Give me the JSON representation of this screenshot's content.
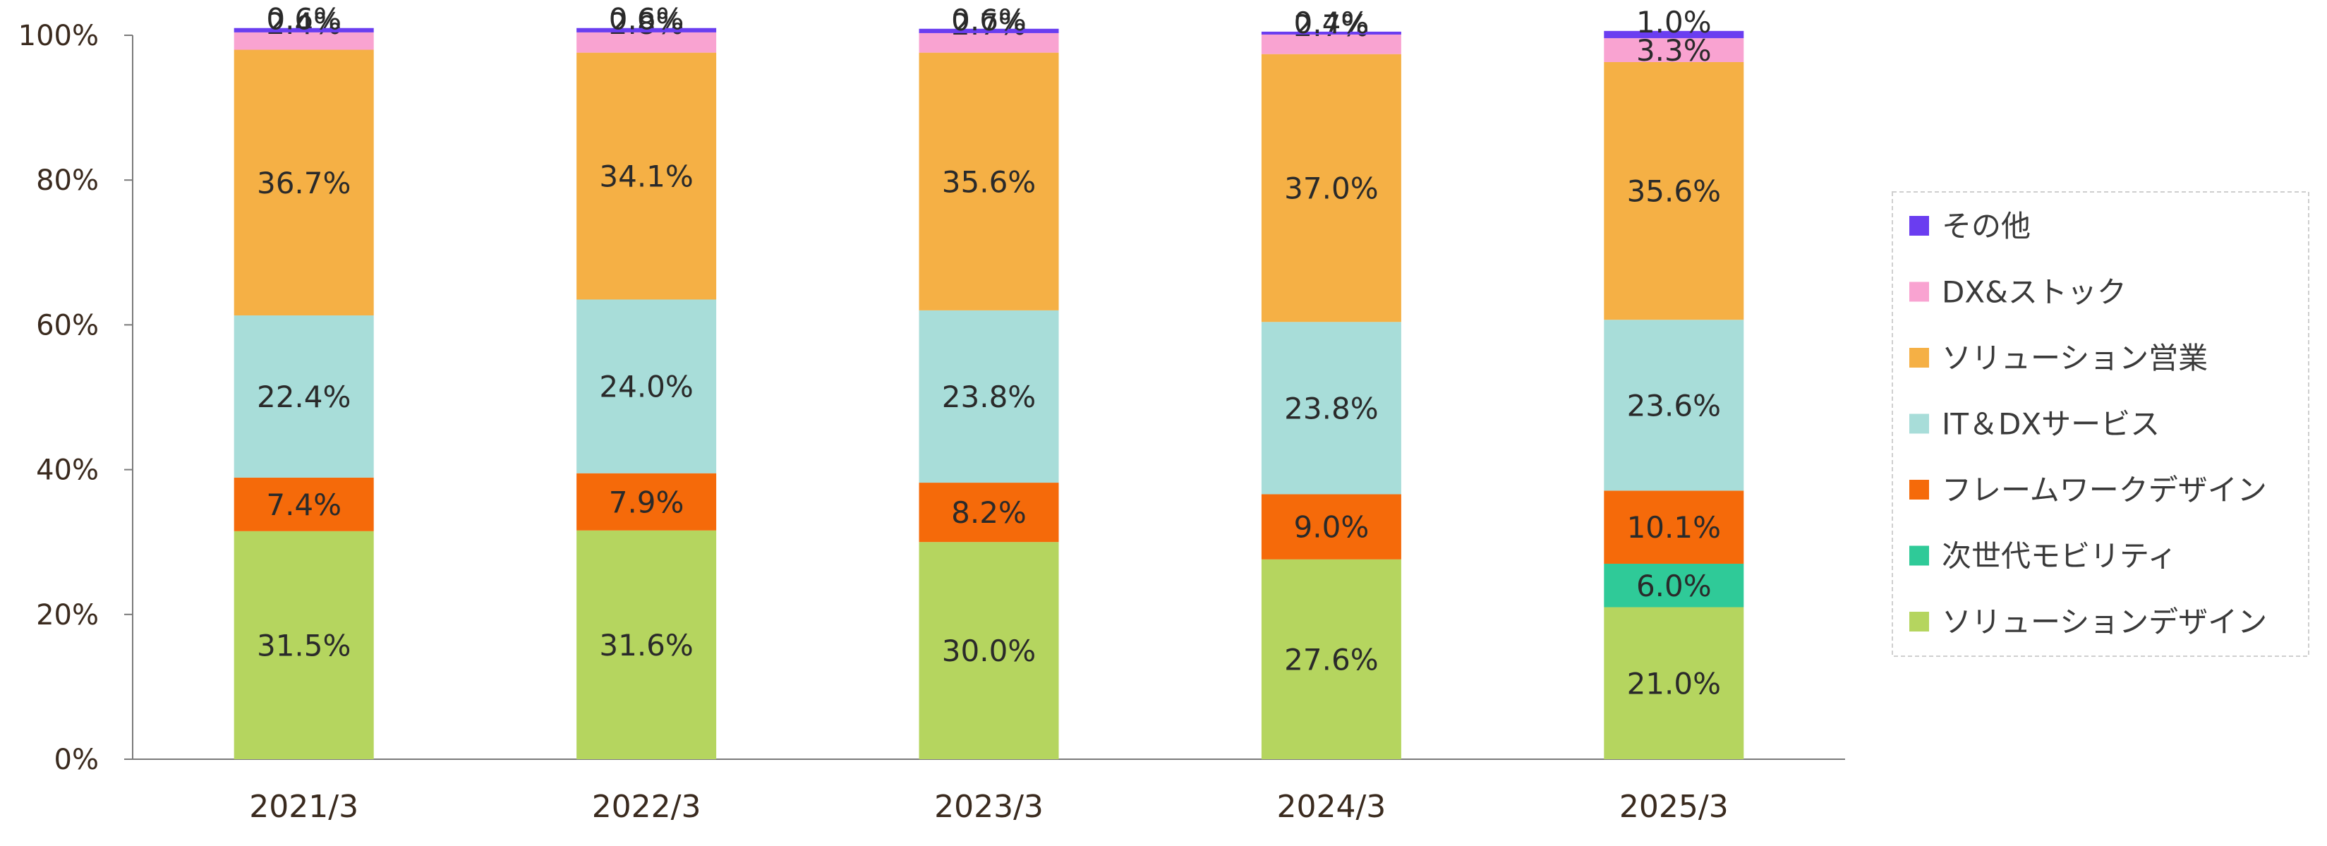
{
  "chart_data": {
    "type": "bar",
    "stacked": true,
    "categories": [
      "2021/3",
      "2022/3",
      "2023/3",
      "2024/3",
      "2025/3"
    ],
    "series": [
      {
        "name": "ソリューションデザイン",
        "color": "#b5d55f",
        "values": [
          31.5,
          31.6,
          30.0,
          27.6,
          21.0
        ],
        "labels": [
          "31.5%",
          "31.6%",
          "30.0%",
          "27.6%",
          "21.0%"
        ]
      },
      {
        "name": "次世代モビリティ",
        "color": "#2fca98",
        "values": [
          0,
          0,
          0,
          0,
          6.0
        ],
        "labels": [
          "",
          "",
          "",
          "",
          "6.0%"
        ]
      },
      {
        "name": "フレームワークデザイン",
        "color": "#f56a0a",
        "values": [
          7.4,
          7.9,
          8.2,
          9.0,
          10.1
        ],
        "labels": [
          "7.4%",
          "7.9%",
          "8.2%",
          "9.0%",
          "10.1%"
        ]
      },
      {
        "name": "IT＆DXサービス",
        "color": "#a8ddd9",
        "values": [
          22.4,
          24.0,
          23.8,
          23.8,
          23.6
        ],
        "labels": [
          "22.4%",
          "24.0%",
          "23.8%",
          "23.8%",
          "23.6%"
        ]
      },
      {
        "name": "ソリューション営業",
        "color": "#f5b045",
        "values": [
          36.7,
          34.1,
          35.6,
          37.0,
          35.6
        ],
        "labels": [
          "36.7%",
          "34.1%",
          "35.6%",
          "37.0%",
          "35.6%"
        ]
      },
      {
        "name": "DX&ストック",
        "color": "#f9a3d1",
        "values": [
          2.4,
          2.8,
          2.7,
          2.7,
          3.3
        ],
        "labels": [
          "2.4%",
          "2.8%",
          "2.7%",
          "2.7%",
          "3.3%"
        ]
      },
      {
        "name": "その他",
        "color": "#6a3df0",
        "values": [
          0.6,
          0.6,
          0.6,
          0.4,
          1.0
        ],
        "labels": [
          "0.6%",
          "0.6%",
          "0.6%",
          "0.4%",
          "1.0%"
        ]
      }
    ],
    "y_ticks": [
      "0%",
      "20%",
      "40%",
      "60%",
      "80%",
      "100%"
    ],
    "ylim": [
      0,
      100
    ],
    "legend_position": "right",
    "legend_order": [
      "その他",
      "DX&ストック",
      "ソリューション営業",
      "IT＆DXサービス",
      "フレームワークデザイン",
      "次世代モビリティ",
      "ソリューションデザイン"
    ],
    "grid": false
  }
}
